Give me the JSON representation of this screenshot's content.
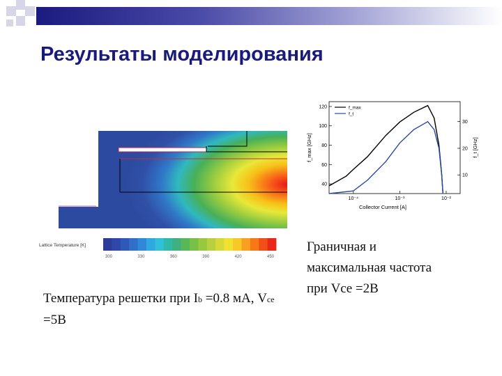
{
  "slide": {
    "title": "Результаты моделирования",
    "colors": {
      "title": "#1a1a7a",
      "bar_start": "#1a1a80",
      "bar_end": "#ffffff"
    }
  },
  "simulation": {
    "colorbar_label": "Lattice Temperature [K]",
    "colorbar_ticks": [
      "300",
      "330",
      "360",
      "390",
      "420",
      "450"
    ]
  },
  "caption_left": {
    "prefix": "Температура решетки при I",
    "sub1": "b",
    "middle": " =0.8 мА, V",
    "sub2": "ce",
    "suffix": " =5В"
  },
  "caption_right": {
    "line1": "Граничная и",
    "line2": "максимальная частота",
    "line3": "при Vce =2В"
  },
  "chart_data": {
    "type": "line",
    "xlabel": "Collector Current [A]",
    "ylabel_left": "f_max [GHz]",
    "ylabel_right": "f_t [GHz]",
    "x_scale": "log",
    "xlim": [
      3e-05,
      0.02
    ],
    "x_ticks": [
      "10⁻⁴",
      "10⁻³",
      "10⁻²"
    ],
    "ylim_left": [
      30,
      125
    ],
    "ylim_right": [
      3,
      37.5
    ],
    "y_ticks_left": [
      "40",
      "60",
      "80",
      "100",
      "120"
    ],
    "y_ticks_right": [
      "10",
      "20",
      "30"
    ],
    "legend": [
      "f_max",
      "f_t"
    ],
    "legend_position": "top-left",
    "series": [
      {
        "name": "f_max",
        "axis": "left",
        "color": "#000000",
        "x": [
          3e-05,
          7e-05,
          0.0001,
          0.0002,
          0.0005,
          0.001,
          0.002,
          0.004,
          0.0055,
          0.007,
          0.008,
          0.0085
        ],
        "y": [
          38,
          48,
          55,
          68,
          90,
          104,
          114,
          121,
          108,
          80,
          50,
          30
        ]
      },
      {
        "name": "f_t",
        "axis": "right",
        "color": "#2a4aa0",
        "x": [
          3e-05,
          0.0001,
          0.0002,
          0.0005,
          0.001,
          0.002,
          0.004,
          0.0055,
          0.007,
          0.008,
          0.0085
        ],
        "y": [
          3,
          4,
          8,
          15,
          22,
          27,
          30,
          27,
          20,
          10,
          3
        ]
      }
    ]
  }
}
